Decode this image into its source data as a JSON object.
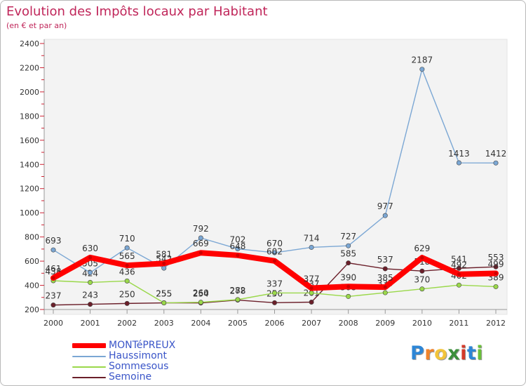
{
  "header": {
    "title": "Evolution des Impôts locaux par Habitant",
    "subtitle": "(en € et par an)"
  },
  "brand": {
    "letters": [
      "P",
      "r",
      "o",
      "x",
      "i",
      "t",
      "i"
    ],
    "colors": [
      "#2d86d6",
      "#f0832a",
      "#f2c43a",
      "#3b8f3b",
      "#d43a2a",
      "#2d86d6",
      "#6abf3a"
    ]
  },
  "chart_data": {
    "type": "line",
    "title": "Evolution des Impôts locaux par Habitant",
    "subtitle": "(en € et par an)",
    "xlabel": "",
    "ylabel": "",
    "x": [
      "2000",
      "2001",
      "2002",
      "2003",
      "2004",
      "2005",
      "2006",
      "2007",
      "2008",
      "2009",
      "2010",
      "2011",
      "2012"
    ],
    "ylim": [
      200,
      2400
    ],
    "yticks": [
      200,
      400,
      600,
      800,
      1000,
      1200,
      1400,
      1600,
      1800,
      2000,
      2200,
      2400
    ],
    "grid": false,
    "legend_position": "bottom-left",
    "series": [
      {
        "name": "Semoine",
        "color": "#6b1f2a",
        "values": [
          237,
          243,
          250,
          255,
          254,
          278,
          256,
          261,
          585,
          537,
          518,
          541,
          553
        ],
        "labels": [
          "237",
          "243",
          "250",
          "255",
          "254",
          "278",
          "256",
          "261",
          "585",
          "537",
          "518",
          "541",
          "553"
        ]
      },
      {
        "name": "Sommesous",
        "color": "#9ad84a",
        "values": [
          438,
          424,
          436,
          255,
          260,
          282,
          337,
          337,
          308,
          339,
          370,
          402,
          389
        ],
        "labels": [
          "438",
          "424",
          "436",
          "255",
          "260",
          "282",
          "337",
          "337",
          "308",
          "339",
          "370",
          "402",
          "389"
        ]
      },
      {
        "name": "Haussimont",
        "color": "#7ba7d4",
        "values": [
          693,
          505,
          710,
          542,
          792,
          702,
          670,
          714,
          727,
          977,
          2187,
          1413,
          1412
        ],
        "labels": [
          "693",
          "505",
          "710",
          "542",
          "792",
          "702",
          "670",
          "714",
          "727",
          "977",
          "2187",
          "1413",
          "1412"
        ]
      },
      {
        "name": "MONTéPREUX",
        "color": "#ff0000",
        "values": [
          461,
          630,
          565,
          581,
          669,
          648,
          602,
          377,
          390,
          385,
          629,
          492,
          499
        ],
        "labels": [
          "461",
          "630",
          "565",
          "581",
          "669",
          "648",
          "602",
          "377",
          "390",
          "385",
          "629",
          "492",
          "499"
        ]
      }
    ]
  }
}
